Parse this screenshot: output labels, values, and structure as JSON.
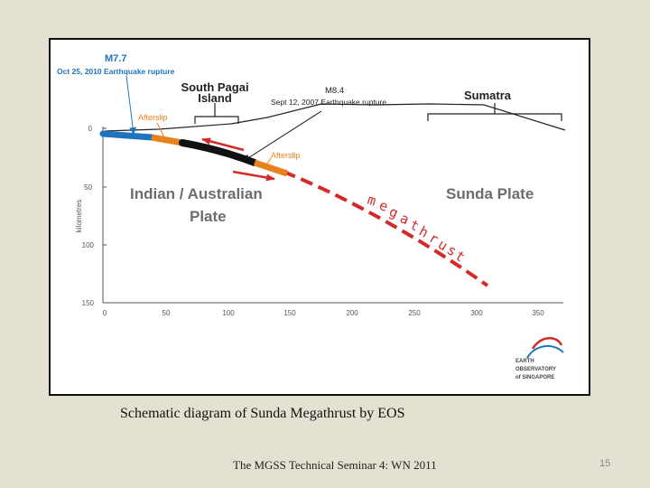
{
  "diagram": {
    "colors": {
      "blue": "#1f74bf",
      "orange": "#e8821e",
      "red": "#d42a2a",
      "black": "#111111",
      "grey_label": "#6d6d6d",
      "axis": "#555555"
    },
    "events": {
      "m77_title": "M7.7",
      "m77_date": "Oct 25, 2010 Earthquake rupture",
      "m84_title": "M8.4",
      "m84_date": "Sept 12, 2007 Earthquake rupture"
    },
    "regions": {
      "pagai_line1": "South Pagai",
      "pagai_line2": "Island",
      "sumatra": "Sumatra"
    },
    "afterslip_1": "Afterslip",
    "afterslip_2": "Afterslip",
    "plates": {
      "indian_line1": "Indian / Australian",
      "indian_line2": "Plate",
      "sunda": "Sunda Plate"
    },
    "megathrust_letters": [
      "m",
      "e",
      "g",
      "a",
      "t",
      "h",
      "r",
      "u",
      "s",
      "t"
    ],
    "y_axis": {
      "title": "kilometres",
      "ticks": [
        "0",
        "50",
        "100",
        "150"
      ]
    },
    "x_axis": {
      "ticks": [
        "0",
        "50",
        "100",
        "150",
        "200",
        "250",
        "300",
        "350"
      ]
    },
    "logo": {
      "line1": "EARTH",
      "line2": "OBSERVATORY",
      "line3": "of SINGAPORE"
    }
  },
  "caption": "Schematic diagram of Sunda Megathrust  by EOS",
  "footer": "The MGSS Technical Seminar 4: WN 2011",
  "page_number": "15"
}
